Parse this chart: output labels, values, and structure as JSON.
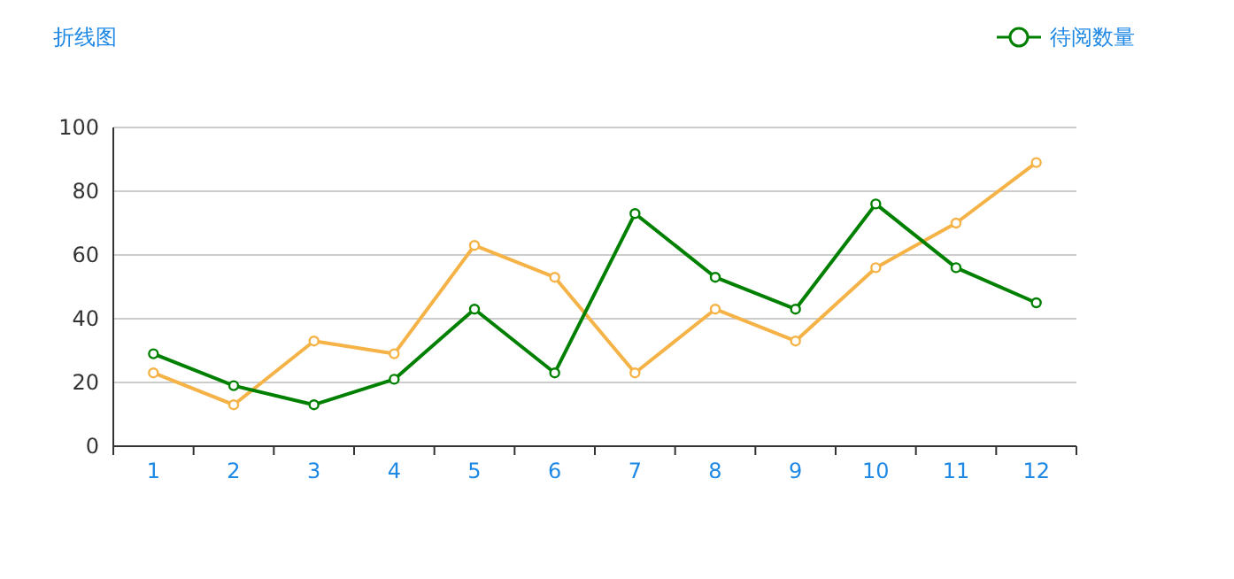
{
  "chart_data": {
    "type": "line",
    "title": "折线图",
    "categories": [
      "1",
      "2",
      "3",
      "4",
      "5",
      "6",
      "7",
      "8",
      "9",
      "10",
      "11",
      "12"
    ],
    "series": [
      {
        "name": "待阅数量",
        "color": "#008000",
        "values": [
          29,
          19,
          13,
          21,
          43,
          23,
          73,
          53,
          43,
          76,
          56,
          45
        ]
      },
      {
        "color": "#f5b347",
        "values": [
          23,
          13,
          33,
          29,
          63,
          53,
          23,
          43,
          33,
          56,
          70,
          89
        ]
      }
    ],
    "ylim": [
      0,
      100
    ],
    "yticks": [
      0,
      20,
      40,
      60,
      80,
      100
    ],
    "grid": "y",
    "legend": "top right",
    "marker": "circle",
    "line_style": "solid"
  }
}
